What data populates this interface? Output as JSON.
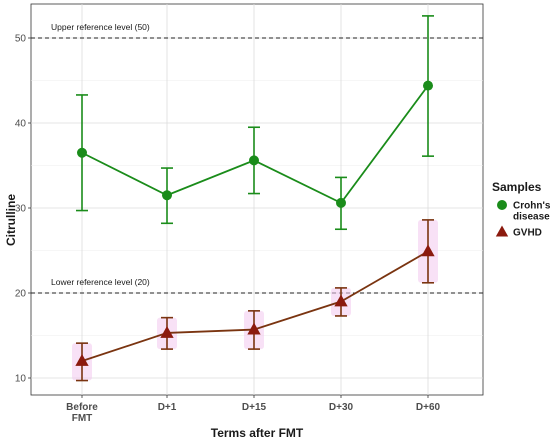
{
  "chart_data": {
    "type": "line",
    "xlabel": "Terms after FMT",
    "ylabel": "Citrulline",
    "categories": [
      "Before FMT",
      "D+1",
      "D+15",
      "D+30",
      "D+60"
    ],
    "ylim": [
      8,
      54
    ],
    "y_ticks": [
      10,
      20,
      30,
      40,
      50
    ],
    "grid": true,
    "legend": {
      "title": "Samples",
      "position": "right"
    },
    "series": [
      {
        "name": "Crohn's disease",
        "name_lines": [
          "Crohn's",
          "disease"
        ],
        "marker": "circle",
        "color": "#1a8c1a",
        "values": [
          36.5,
          31.5,
          35.6,
          30.6,
          44.4
        ],
        "error_low": [
          29.7,
          28.2,
          31.7,
          27.5,
          36.1
        ],
        "error_high": [
          43.3,
          34.7,
          39.5,
          33.6,
          52.6
        ]
      },
      {
        "name": "GVHD",
        "name_lines": [
          "GVHD"
        ],
        "marker": "triangle",
        "color": "#8b1a0e",
        "line_color": "#7a3410",
        "values": [
          12.0,
          15.3,
          15.7,
          19.0,
          24.9
        ],
        "error_low": [
          9.7,
          13.4,
          13.4,
          17.3,
          21.2
        ],
        "error_high": [
          14.1,
          17.1,
          17.9,
          20.6,
          28.6
        ]
      }
    ],
    "reference_lines": [
      {
        "value": 50,
        "label": "Upper reference level (50)"
      },
      {
        "value": 20,
        "label": "Lower reference level (20)"
      }
    ]
  }
}
